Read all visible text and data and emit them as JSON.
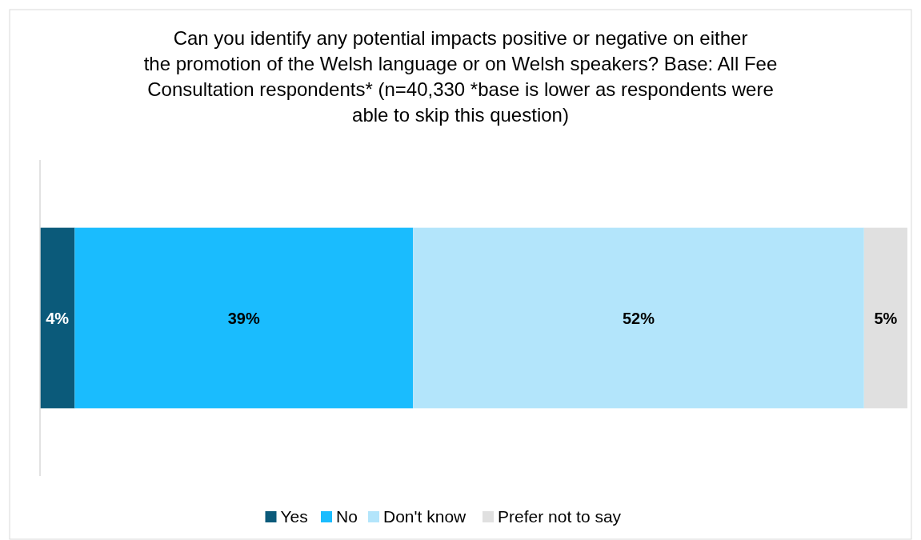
{
  "chart_data": {
    "type": "bar",
    "orientation": "horizontal",
    "stacked": true,
    "title": "Can you identify any potential impacts positive or negative on either the promotion of the Welsh language or on Welsh speakers? Base: All Fee Consultation respondents* (n=40,330 *base is lower as respondents were able to skip this question)",
    "categories": [
      null
    ],
    "series": [
      {
        "name": "Yes",
        "color": "#0b5a7a",
        "values": [
          4
        ],
        "value_labels": [
          "4%"
        ]
      },
      {
        "name": "No",
        "color": "#1abcfe",
        "values": [
          39
        ],
        "value_labels": [
          "39%"
        ]
      },
      {
        "name": "Don't know",
        "color": "#b3e5fb",
        "values": [
          52
        ],
        "value_labels": [
          "52%"
        ]
      },
      {
        "name": "Prefer not to say",
        "color": "#e0e0e0",
        "values": [
          5
        ],
        "value_labels": [
          "5%"
        ]
      }
    ],
    "legend": "bottom"
  }
}
